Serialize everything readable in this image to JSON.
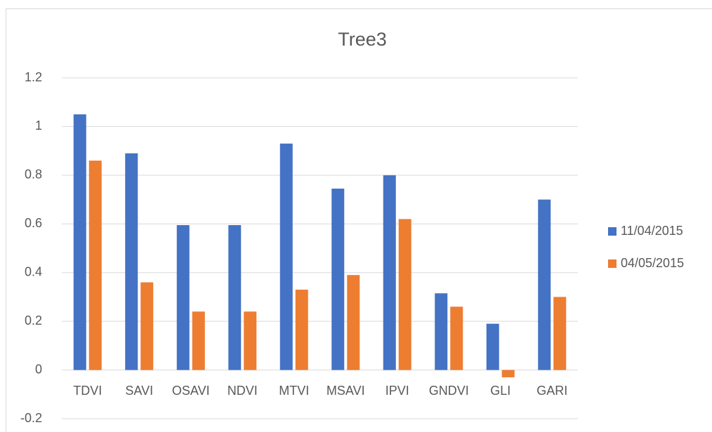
{
  "chart_data": {
    "type": "bar",
    "title": "Tree3",
    "categories": [
      "TDVI",
      "SAVI",
      "OSAVI",
      "NDVI",
      "MTVI",
      "MSAVI",
      "IPVI",
      "GNDVI",
      "GLI",
      "GARI"
    ],
    "series": [
      {
        "name": "11/04/2015",
        "color": "#4472c4",
        "values": [
          1.05,
          0.89,
          0.595,
          0.595,
          0.93,
          0.745,
          0.8,
          0.315,
          0.19,
          0.7
        ]
      },
      {
        "name": "04/05/2015",
        "color": "#ed7d31",
        "values": [
          0.86,
          0.36,
          0.24,
          0.24,
          0.33,
          0.39,
          0.62,
          0.26,
          -0.03,
          0.3
        ]
      }
    ],
    "ylim": [
      -0.2,
      1.2
    ],
    "yticks": [
      -0.2,
      0,
      0.2,
      0.4,
      0.6,
      0.8,
      1,
      1.2
    ],
    "grid": true,
    "legend": "right"
  }
}
